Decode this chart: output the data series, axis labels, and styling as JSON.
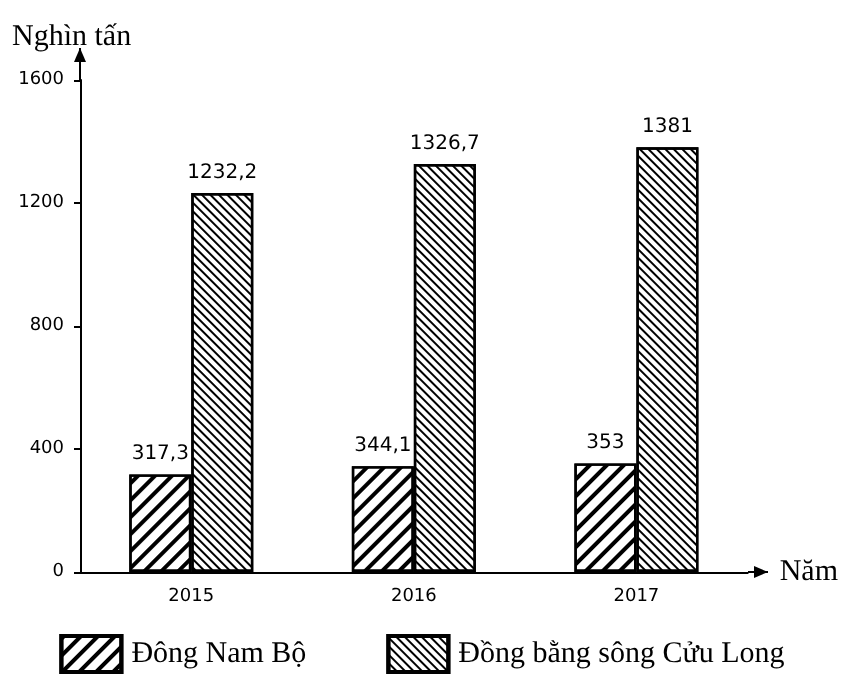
{
  "chart_data": {
    "type": "bar",
    "ylabel": "Nghìn tấn",
    "xlabel": "Năm",
    "categories": [
      "2015",
      "2016",
      "2017"
    ],
    "series": [
      {
        "name": "Đông Nam Bộ",
        "color": "#000000",
        "values": [
          317.3,
          344.1,
          353
        ],
        "value_labels": [
          "317,3",
          "344,1",
          "353"
        ]
      },
      {
        "name": "Đồng bằng sông Cửu Long",
        "color": "#000000",
        "values": [
          1232.2,
          1326.7,
          1381
        ],
        "value_labels": [
          "1232,2",
          "1326,7",
          "1381"
        ]
      }
    ],
    "ylim": [
      0,
      1600
    ],
    "yticks": [
      0,
      400,
      800,
      1200,
      1600
    ],
    "grid": false,
    "legend": "bottom"
  }
}
